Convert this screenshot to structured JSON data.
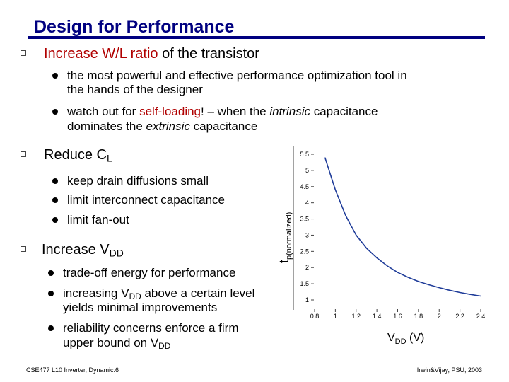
{
  "title": "Design for Performance",
  "main": {
    "s1": {
      "heading_plain": "Increase W/L ratio",
      "heading_rest": " of the transistor",
      "items": [
        {
          "l1": "the most powerful and effective performance optimization tool in",
          "l2": "the hands of the designer"
        },
        {
          "pre": "watch out for ",
          "hl": "self-loading",
          "mid": "! – when the ",
          "it1": "intrinsic",
          "post": " capacitance",
          "l2pre": "dominates the ",
          "it2": "extrinsic",
          "l2post": " capacitance"
        }
      ]
    },
    "s2": {
      "heading_main": "Reduce C",
      "heading_sub": "L",
      "items": [
        "keep drain diffusions small",
        "limit interconnect capacitance",
        "limit fan-out"
      ]
    },
    "s3": {
      "heading_main": "Increase V",
      "heading_sub": "DD",
      "items": [
        {
          "l1": "trade-off energy for performance"
        },
        {
          "pre": "increasing V",
          "sub": "DD",
          "post": " above a certain level",
          "l2": "yields minimal improvements"
        },
        {
          "l1": "reliability concerns enforce a firm",
          "l2pre": "upper bound on V",
          "l2sub": "DD"
        }
      ]
    }
  },
  "footer": {
    "left": "CSE477 L10 Inverter, Dynamic.6",
    "right": "Irwin&Vijay, PSU, 2003"
  },
  "chart_data": {
    "type": "line",
    "title": "",
    "xlabel": {
      "main": "V",
      "sub": "DD",
      "post": " (V)"
    },
    "ylabel": {
      "main": "t",
      "sub": "p(normalized)"
    },
    "xlim": [
      0.8,
      2.4
    ],
    "ylim": [
      1,
      5.5
    ],
    "xticks": [
      0.8,
      1,
      1.2,
      1.4,
      1.6,
      1.8,
      2,
      2.2,
      2.4
    ],
    "xtick_labels": [
      "0.8",
      "1",
      "1.2",
      "1.4",
      "1.6",
      "1.8",
      "2",
      "2.2",
      "2.4"
    ],
    "yticks": [
      1,
      1.5,
      2,
      2.5,
      3,
      3.5,
      4,
      4.5,
      5,
      5.5
    ],
    "ytick_labels": [
      "1",
      "1.5",
      "2",
      "2.5",
      "3",
      "3.5",
      "4",
      "4.5",
      "5",
      "5.5"
    ],
    "grid": false,
    "line_color": "#1f3c99",
    "series": [
      {
        "x": [
          0.9,
          0.95,
          1.0,
          1.05,
          1.1,
          1.15,
          1.2,
          1.3,
          1.4,
          1.5,
          1.6,
          1.7,
          1.8,
          1.9,
          2.0,
          2.1,
          2.2,
          2.3,
          2.4
        ],
        "y": [
          5.4,
          4.9,
          4.4,
          4.0,
          3.6,
          3.3,
          3.0,
          2.6,
          2.3,
          2.05,
          1.85,
          1.7,
          1.57,
          1.47,
          1.38,
          1.3,
          1.23,
          1.17,
          1.12
        ]
      }
    ]
  }
}
